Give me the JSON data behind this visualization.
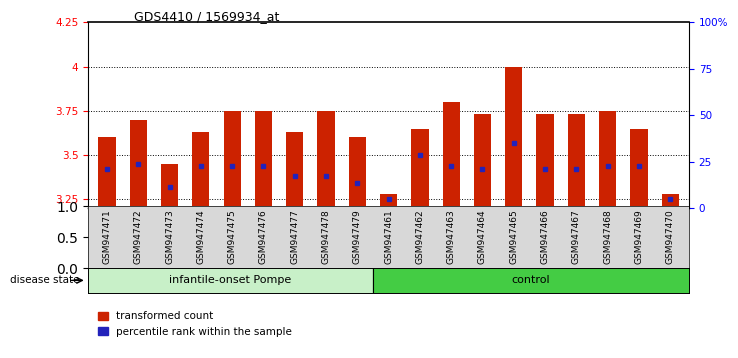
{
  "title": "GDS4410 / 1569934_at",
  "samples": [
    "GSM947471",
    "GSM947472",
    "GSM947473",
    "GSM947474",
    "GSM947475",
    "GSM947476",
    "GSM947477",
    "GSM947478",
    "GSM947479",
    "GSM947461",
    "GSM947462",
    "GSM947463",
    "GSM947464",
    "GSM947465",
    "GSM947466",
    "GSM947467",
    "GSM947468",
    "GSM947469",
    "GSM947470"
  ],
  "transformed_count": [
    3.6,
    3.7,
    3.45,
    3.63,
    3.75,
    3.75,
    3.63,
    3.75,
    3.6,
    3.28,
    3.65,
    3.8,
    3.73,
    4.0,
    3.73,
    3.73,
    3.75,
    3.65,
    3.28
  ],
  "percentile_rank": [
    3.42,
    3.45,
    3.32,
    3.44,
    3.44,
    3.44,
    3.38,
    3.38,
    3.34,
    3.25,
    3.5,
    3.44,
    3.42,
    3.57,
    3.42,
    3.42,
    3.44,
    3.44,
    3.25
  ],
  "group_labels": [
    "infantile-onset Pompe",
    "control"
  ],
  "pompe_count": 9,
  "control_count": 10,
  "pompe_color": "#c8f0c8",
  "control_color": "#44cc44",
  "ylim_left": [
    3.2,
    4.25
  ],
  "ylim_right": [
    0,
    100
  ],
  "yticks_left": [
    3.25,
    3.5,
    3.75,
    4.0,
    4.25
  ],
  "yticks_right": [
    0,
    25,
    50,
    75,
    100
  ],
  "ytick_labels_left": [
    "3.25",
    "3.5",
    "3.75",
    "4",
    "4.25"
  ],
  "ytick_labels_right": [
    "0",
    "25",
    "50",
    "75",
    "100%"
  ],
  "bar_color": "#cc2200",
  "marker_color": "#2222bb",
  "bar_width": 0.55,
  "disease_state_label": "disease state",
  "legend_items": [
    "transformed count",
    "percentile rank within the sample"
  ]
}
